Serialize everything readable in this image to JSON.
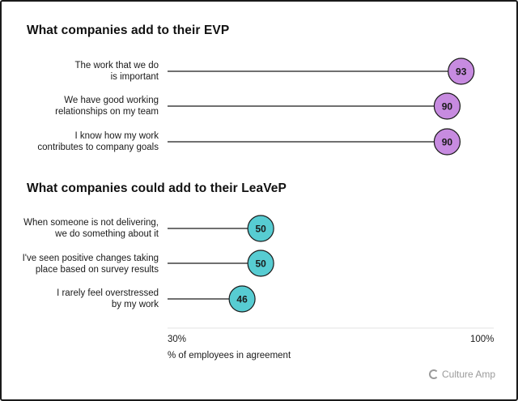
{
  "chart_data": {
    "type": "lollipop",
    "xlim": [
      30,
      100
    ],
    "xlabel": "% of employees in agreement",
    "tick_labels": [
      "30%",
      "100%"
    ],
    "groups": [
      {
        "title": "What companies add to their EVP",
        "color": "#c78be0",
        "rows": [
          {
            "label_lines": [
              "The work that we do",
              "is important"
            ],
            "value": 93
          },
          {
            "label_lines": [
              "We have good working",
              "relationships on my team"
            ],
            "value": 90
          },
          {
            "label_lines": [
              "I know how my work",
              "contributes to company goals"
            ],
            "value": 90
          }
        ]
      },
      {
        "title": "What companies could add to their LeaVeP",
        "color": "#57ccd2",
        "rows": [
          {
            "label_lines": [
              "When someone is not delivering,",
              "we do something about it"
            ],
            "value": 50
          },
          {
            "label_lines": [
              "I've seen positive changes taking",
              "place based on survey results"
            ],
            "value": 50
          },
          {
            "label_lines": [
              "I rarely feel overstressed",
              "by my work"
            ],
            "value": 46
          }
        ]
      }
    ]
  },
  "brand": {
    "name": "Culture Amp",
    "icon": "culture-amp-logo-icon",
    "color": "#9a9a9a"
  }
}
